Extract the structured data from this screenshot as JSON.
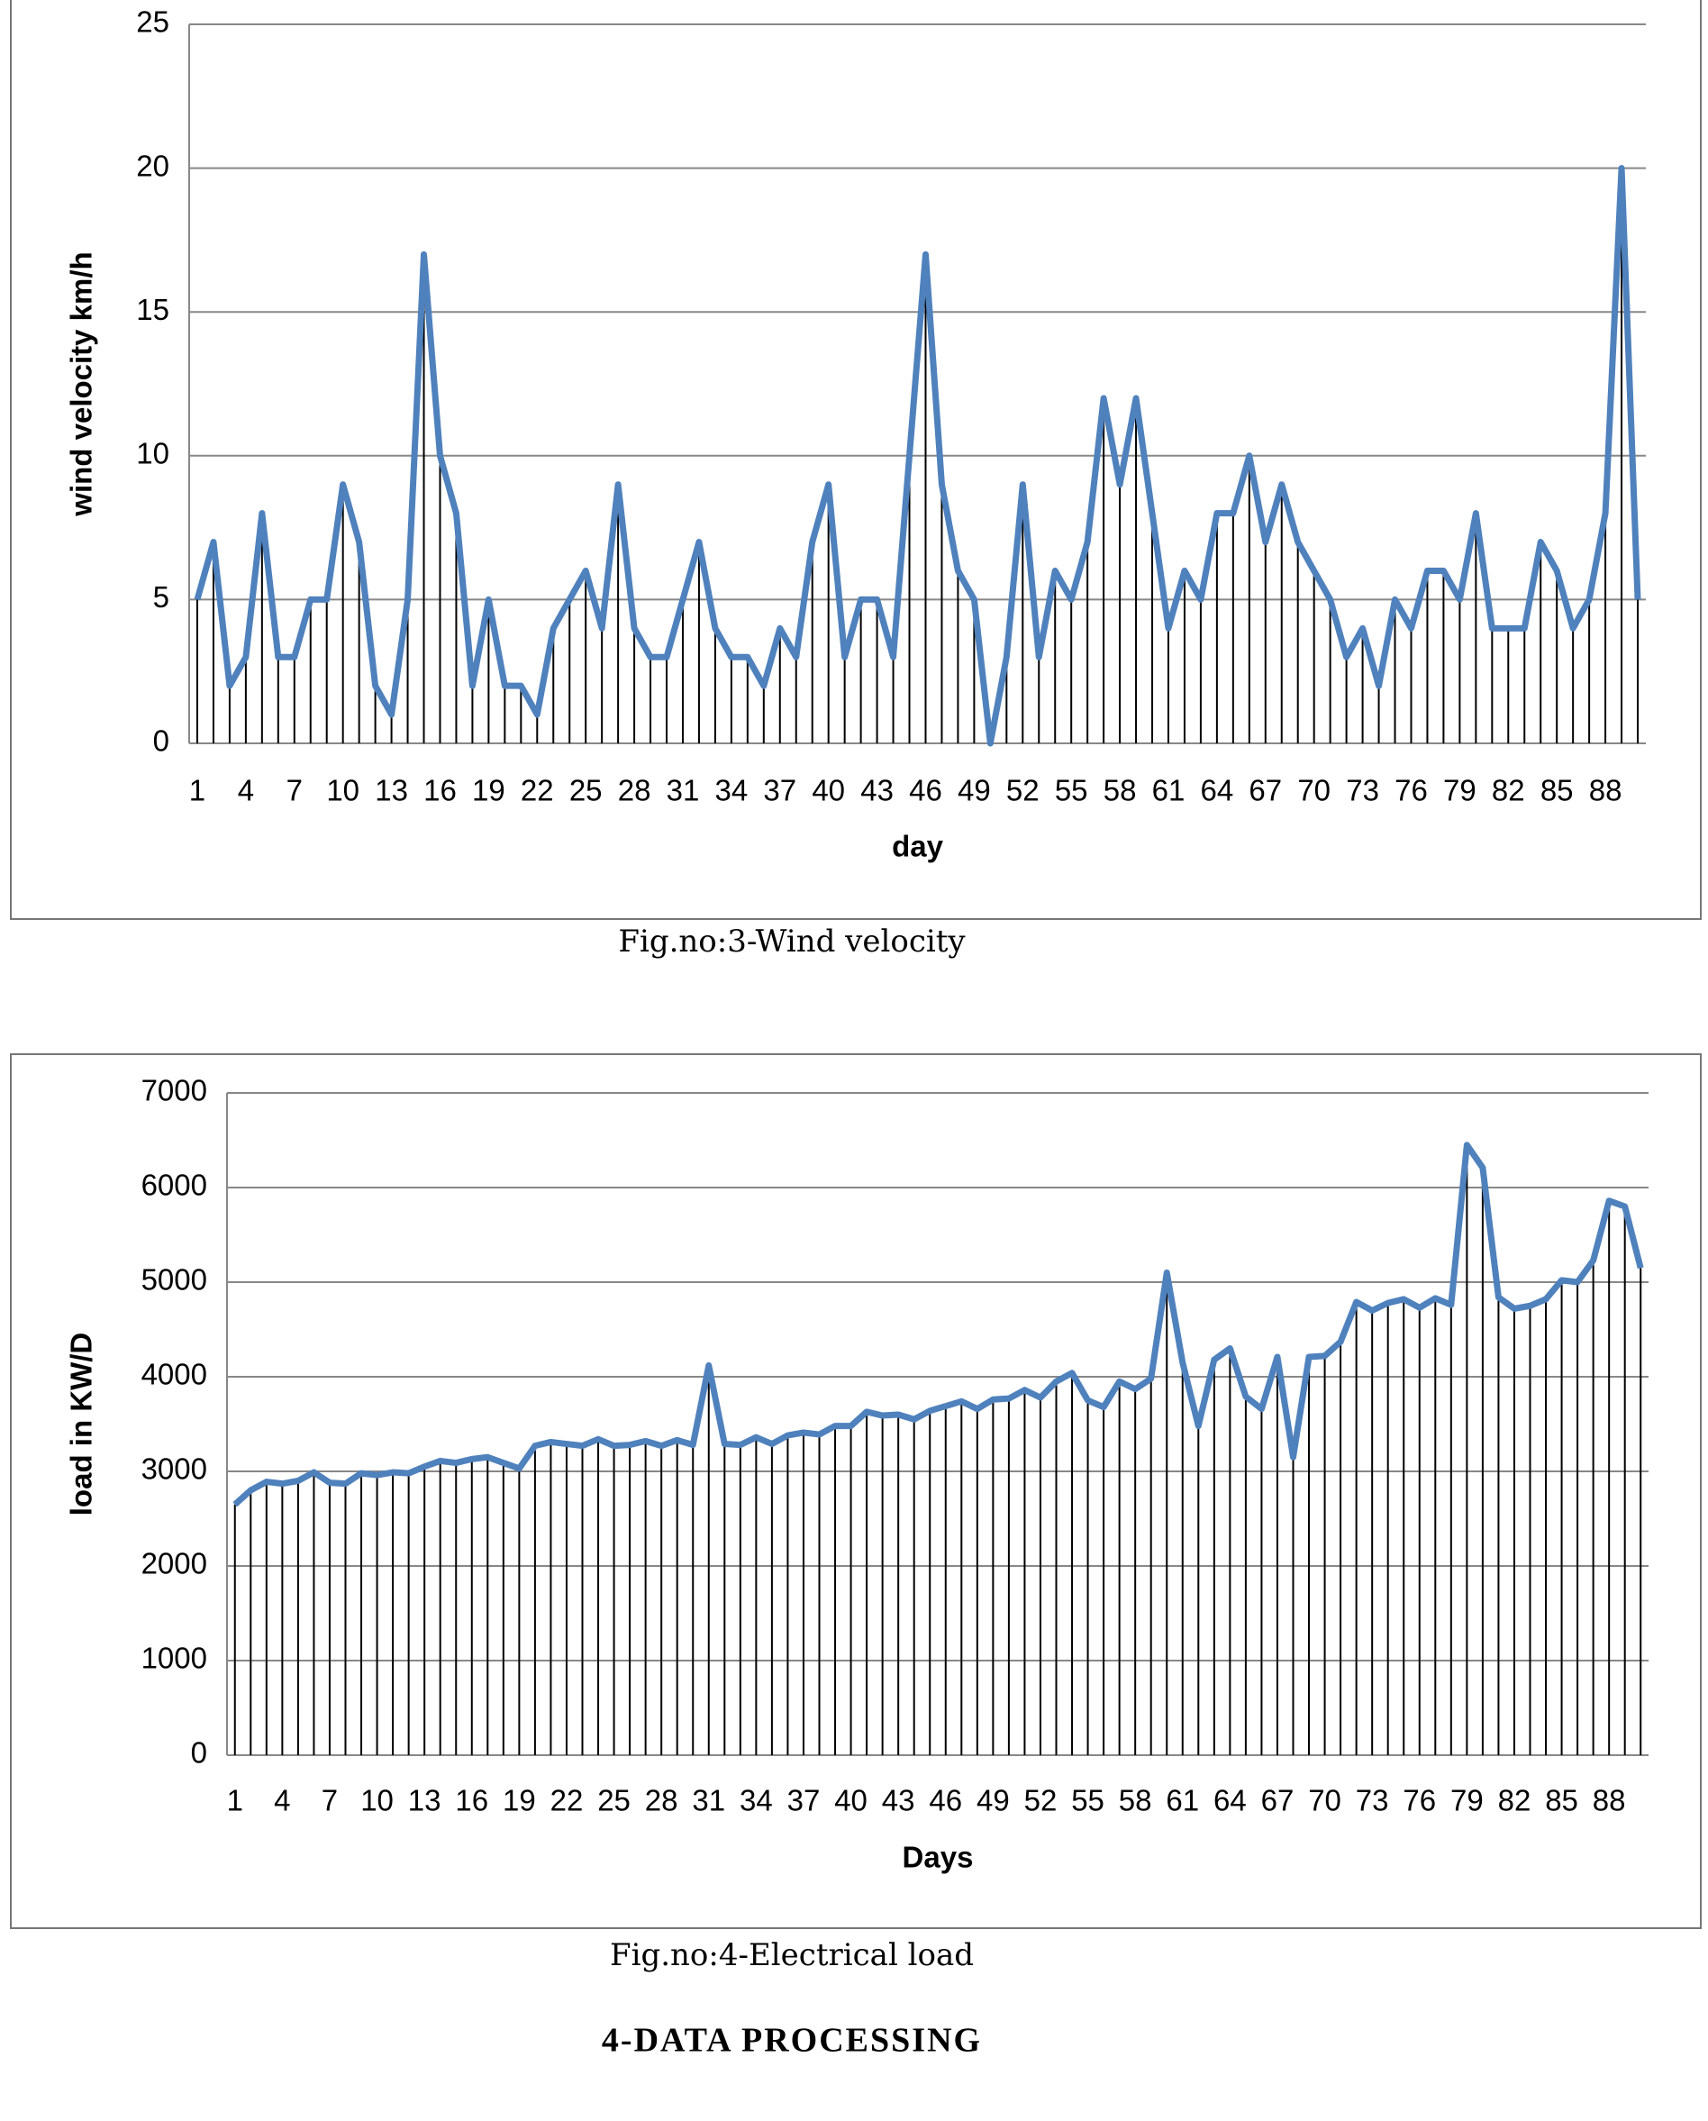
{
  "chart_data": [
    {
      "type": "line",
      "x_label": "day",
      "y_label": "wind velocity km/h",
      "categories": [
        1,
        null,
        null,
        4,
        null,
        null,
        7,
        null,
        null,
        10,
        null,
        null,
        13,
        null,
        null,
        16,
        null,
        null,
        19,
        null,
        null,
        22,
        null,
        null,
        25,
        null,
        null,
        28,
        null,
        null,
        31,
        null,
        null,
        34,
        null,
        null,
        37,
        null,
        null,
        40,
        null,
        null,
        43,
        null,
        null,
        46,
        null,
        null,
        49,
        null,
        null,
        52,
        null,
        null,
        55,
        null,
        null,
        58,
        null,
        null,
        61,
        null,
        null,
        64,
        null,
        null,
        67,
        null,
        null,
        70,
        null,
        null,
        73,
        null,
        null,
        76,
        null,
        null,
        79,
        null,
        null,
        82,
        null,
        null,
        85,
        null,
        null,
        88,
        null,
        null
      ],
      "values": [
        5,
        7,
        2,
        3,
        8,
        3,
        3,
        5,
        5,
        9,
        7,
        2,
        1,
        5,
        17,
        10,
        8,
        2,
        5,
        2,
        2,
        1,
        4,
        5,
        6,
        4,
        9,
        4,
        3,
        3,
        5,
        7,
        4,
        3,
        3,
        2,
        4,
        3,
        7,
        9,
        3,
        5,
        5,
        3,
        10,
        17,
        9,
        6,
        5,
        0,
        3,
        9,
        3,
        6,
        5,
        7,
        12,
        9,
        12,
        8,
        4,
        6,
        5,
        8,
        8,
        10,
        7,
        9,
        7,
        6,
        5,
        3,
        4,
        2,
        5,
        4,
        6,
        6,
        5,
        8,
        4,
        4,
        4,
        7,
        6,
        4,
        5,
        8,
        20,
        5
      ],
      "color": "#4f81bd",
      "drop_lines": true,
      "grid": true,
      "ylim": [
        0,
        25
      ],
      "yticks": [
        0,
        5,
        10,
        15,
        20,
        25
      ]
    },
    {
      "type": "line",
      "x_label": "Days",
      "y_label": "load in KW/D",
      "categories": [
        1,
        null,
        null,
        4,
        null,
        null,
        7,
        null,
        null,
        10,
        null,
        null,
        13,
        null,
        null,
        16,
        null,
        null,
        19,
        null,
        null,
        22,
        null,
        null,
        25,
        null,
        null,
        28,
        null,
        null,
        31,
        null,
        null,
        34,
        null,
        null,
        37,
        null,
        null,
        40,
        null,
        null,
        43,
        null,
        null,
        46,
        null,
        null,
        49,
        null,
        null,
        52,
        null,
        null,
        55,
        null,
        null,
        58,
        null,
        null,
        61,
        null,
        null,
        64,
        null,
        null,
        67,
        null,
        null,
        70,
        null,
        null,
        73,
        null,
        null,
        76,
        null,
        null,
        79,
        null,
        null,
        82,
        null,
        null,
        85,
        null,
        null,
        88,
        null,
        null
      ],
      "values": [
        2650,
        2800,
        2890,
        2870,
        2900,
        2990,
        2880,
        2870,
        2980,
        2960,
        2990,
        2980,
        3050,
        3110,
        3090,
        3130,
        3150,
        3090,
        3030,
        3270,
        3310,
        3290,
        3270,
        3340,
        3270,
        3280,
        3320,
        3270,
        3330,
        3280,
        4120,
        3290,
        3280,
        3360,
        3290,
        3380,
        3410,
        3390,
        3480,
        3480,
        3630,
        3590,
        3600,
        3550,
        3640,
        3690,
        3740,
        3660,
        3760,
        3770,
        3860,
        3780,
        3950,
        4040,
        3750,
        3680,
        3950,
        3870,
        3980,
        5100,
        4150,
        3480,
        4180,
        4300,
        3790,
        3660,
        4210,
        3150,
        4210,
        4220,
        4370,
        4790,
        4700,
        4780,
        4820,
        4730,
        4830,
        4760,
        6450,
        6210,
        4840,
        4720,
        4750,
        4820,
        5020,
        5000,
        5230,
        5860,
        5800,
        5150
      ],
      "color": "#4f81bd",
      "drop_lines": true,
      "grid": true,
      "ylim": [
        0,
        7000
      ],
      "yticks": [
        0,
        1000,
        2000,
        3000,
        4000,
        5000,
        6000,
        7000
      ]
    }
  ],
  "captions": [
    "Fig.no:3-Wind velocity",
    "Fig.no:4-Electrical load"
  ],
  "heading": "4-DATA PROCESSING"
}
